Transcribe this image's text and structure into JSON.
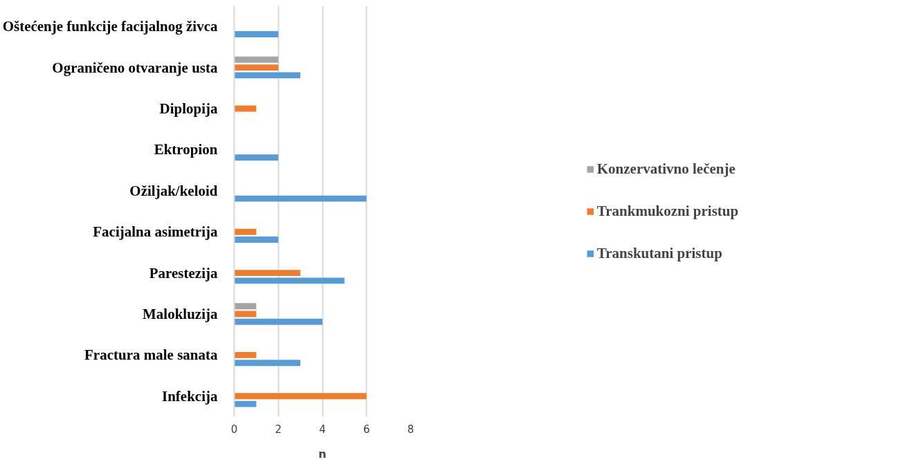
{
  "chart_data": {
    "type": "bar",
    "orientation": "horizontal",
    "xlabel": "n",
    "categories": [
      "Oštećenje funkcije facijalnog živca",
      "Ograničeno otvaranje usta",
      "Diplopija",
      "Ektropion",
      "Ožiljak/keloid",
      "Facijalna asimetrija",
      "Parestezija",
      "Malokluzija",
      "Fractura male sanata",
      "Infekcija"
    ],
    "series": [
      {
        "name": "Transkutani pristup",
        "color": "#5b9bd5",
        "values": [
          2,
          3,
          null,
          2,
          6,
          2,
          5,
          4,
          3,
          1
        ]
      },
      {
        "name": "Trankmukozni pristup",
        "color": "#ed7d31",
        "values": [
          null,
          2,
          1,
          null,
          null,
          1,
          3,
          1,
          1,
          6
        ]
      },
      {
        "name": "Konzervativno lečenje",
        "color": "#a5a5a5",
        "values": [
          null,
          2,
          null,
          null,
          null,
          null,
          null,
          1,
          null,
          null
        ]
      }
    ],
    "xlim": [
      0,
      8
    ],
    "xticks": [
      0,
      2,
      4,
      6,
      8
    ],
    "grid": "x",
    "legend": "right"
  }
}
